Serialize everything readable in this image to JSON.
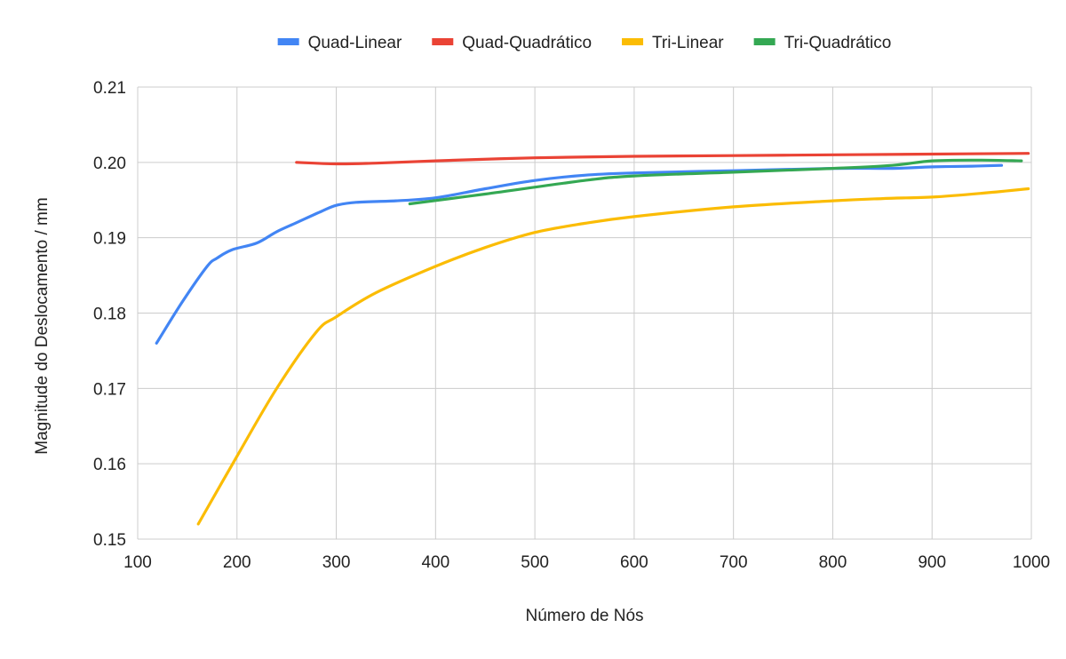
{
  "chart_data": {
    "type": "line",
    "title": "",
    "xlabel": "Número de Nós",
    "ylabel": "Magnitude do Deslocamento / mm",
    "xlim": [
      100,
      1000
    ],
    "ylim": [
      0.15,
      0.21
    ],
    "xticks": [
      100,
      200,
      300,
      400,
      500,
      600,
      700,
      800,
      900,
      1000
    ],
    "xtick_labels": [
      "100",
      "200",
      "300",
      "400",
      "500",
      "600",
      "700",
      "800",
      "900",
      "1000"
    ],
    "yticks": [
      0.15,
      0.16,
      0.17,
      0.18,
      0.19,
      0.2,
      0.21
    ],
    "ytick_labels": [
      "0.15",
      "0.16",
      "0.17",
      "0.18",
      "0.19",
      "0.20",
      "0.21"
    ],
    "grid": true,
    "legend_position": "top",
    "series": [
      {
        "name": "Quad-Linear",
        "color": "#4285f4",
        "x": [
          119,
          145,
          170,
          180,
          195,
          220,
          240,
          260,
          285,
          300,
          320,
          360,
          400,
          450,
          500,
          550,
          600,
          700,
          800,
          860,
          900,
          940,
          970
        ],
        "y": [
          0.176,
          0.1815,
          0.1862,
          0.1873,
          0.1884,
          0.1893,
          0.1908,
          0.192,
          0.1935,
          0.1943,
          0.1947,
          0.1949,
          0.1953,
          0.1965,
          0.1976,
          0.1983,
          0.1986,
          0.1989,
          0.1992,
          0.1992,
          0.1994,
          0.1995,
          0.1996
        ]
      },
      {
        "name": "Quad-Quadrático",
        "color": "#ea4335",
        "x": [
          260,
          300,
          340,
          400,
          500,
          600,
          700,
          800,
          900,
          997
        ],
        "y": [
          0.2,
          0.1998,
          0.1999,
          0.2002,
          0.2006,
          0.2008,
          0.2009,
          0.201,
          0.2011,
          0.2012
        ]
      },
      {
        "name": "Tri-Linear",
        "color": "#fbbc04",
        "x": [
          161,
          200,
          240,
          280,
          300,
          340,
          400,
          450,
          500,
          550,
          600,
          700,
          800,
          850,
          900,
          950,
          997
        ],
        "y": [
          0.152,
          0.161,
          0.17,
          0.1775,
          0.1795,
          0.1827,
          0.1862,
          0.1887,
          0.1907,
          0.1919,
          0.1928,
          0.1941,
          0.1949,
          0.1952,
          0.1954,
          0.1959,
          0.1965
        ]
      },
      {
        "name": "Tri-Quadrático",
        "color": "#34a853",
        "x": [
          374,
          450,
          550,
          600,
          700,
          800,
          860,
          900,
          950,
          990
        ],
        "y": [
          0.1945,
          0.1958,
          0.1976,
          0.1982,
          0.1987,
          0.1992,
          0.1996,
          0.2002,
          0.2003,
          0.2002
        ]
      }
    ]
  }
}
